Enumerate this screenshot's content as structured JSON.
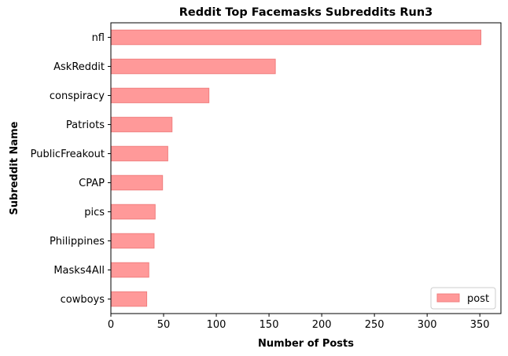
{
  "chart_data": {
    "type": "bar",
    "orientation": "horizontal",
    "title": "Reddit Top Facemasks Subreddits Run3",
    "xlabel": "Number of Posts",
    "ylabel": "Subreddit Name",
    "categories": [
      "nfl",
      "AskReddit",
      "conspiracy",
      "Patriots",
      "PublicFreakout",
      "CPAP",
      "pics",
      "Philippines",
      "Masks4All",
      "cowboys"
    ],
    "series": [
      {
        "name": "post",
        "values": [
          351,
          156,
          93,
          58,
          54,
          49,
          42,
          41,
          36,
          34
        ]
      }
    ],
    "xlim": [
      0,
      370
    ],
    "xticks": [
      0,
      50,
      100,
      150,
      200,
      250,
      300,
      350
    ],
    "grid": false,
    "legend_position": "lower right",
    "colors": {
      "bar_fill": "#ff9999",
      "bar_edge": "#f07f7f"
    }
  }
}
